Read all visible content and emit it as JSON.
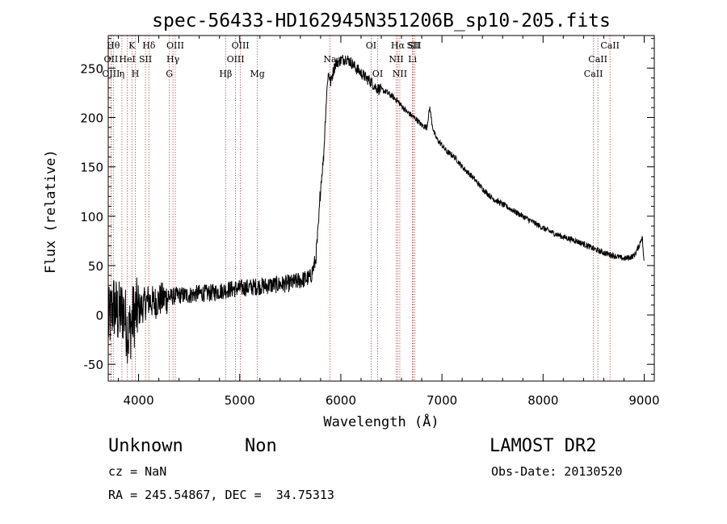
{
  "chart_data": {
    "type": "line",
    "title": "spec-56433-HD162945N351206B_sp10-205.fits",
    "xlabel": "Wavelength (Å)",
    "ylabel": "Flux (relative)",
    "xlim": [
      3700,
      9100
    ],
    "ylim": [
      -67,
      283
    ],
    "xticks": [
      4000,
      5000,
      6000,
      7000,
      8000,
      9000
    ],
    "yticks": [
      -50,
      0,
      50,
      100,
      150,
      200,
      250
    ],
    "grid": false,
    "series": [
      {
        "x": [
          3700,
          3750,
          3800,
          3850,
          3900,
          3950,
          4000,
          4050,
          4100,
          4150,
          4200,
          4300,
          4400,
          4500,
          4600,
          4700,
          4800,
          4900,
          5000,
          5100,
          5200,
          5300,
          5400,
          5500,
          5600,
          5700,
          5750,
          5780,
          5800,
          5830,
          5850,
          5870,
          5880,
          5900,
          5920,
          5950,
          6000,
          6050,
          6100,
          6150,
          6200,
          6250,
          6300,
          6350,
          6400,
          6450,
          6500,
          6550,
          6600,
          6650,
          6700,
          6750,
          6800,
          6850,
          6880,
          6900,
          6920,
          6950,
          7000,
          7050,
          7100,
          7150,
          7200,
          7250,
          7300,
          7400,
          7500,
          7600,
          7700,
          7800,
          7900,
          8000,
          8100,
          8200,
          8300,
          8400,
          8500,
          8600,
          8700,
          8800,
          8850,
          8900,
          8950,
          8980,
          9000
        ],
        "y": [
          -10,
          10,
          0,
          5,
          -20,
          0,
          5,
          10,
          15,
          12,
          15,
          18,
          20,
          20,
          22,
          22,
          24,
          26,
          27,
          28,
          29,
          30,
          31,
          32,
          35,
          38,
          55,
          90,
          130,
          160,
          205,
          240,
          245,
          235,
          245,
          255,
          258,
          260,
          256,
          250,
          245,
          240,
          236,
          230,
          228,
          226,
          222,
          218,
          212,
          206,
          202,
          198,
          192,
          190,
          210,
          195,
          185,
          178,
          172,
          165,
          162,
          157,
          150,
          145,
          140,
          128,
          118,
          112,
          106,
          100,
          94,
          88,
          83,
          79,
          76,
          72,
          67,
          63,
          60,
          57,
          58,
          60,
          70,
          80,
          50
        ]
      }
    ],
    "line_markers": [
      {
        "wavelength": 3750,
        "label": "Hθ",
        "row": 0
      },
      {
        "wavelength": 3727,
        "label": "OII",
        "row": 1
      },
      {
        "wavelength": 3727,
        "label": "OIII",
        "row": 2
      },
      {
        "wavelength": 3835,
        "label": "η",
        "row": 2
      },
      {
        "wavelength": 3889,
        "label": "HeI",
        "row": 1
      },
      {
        "wavelength": 3934,
        "label": "K",
        "row": 0
      },
      {
        "wavelength": 3968,
        "label": "H",
        "row": 2
      },
      {
        "wavelength": 4068,
        "label": "SII",
        "row": 1
      },
      {
        "wavelength": 4102,
        "label": "Hδ",
        "row": 0
      },
      {
        "wavelength": 4304,
        "label": "G",
        "row": 2
      },
      {
        "wavelength": 4340,
        "label": "Hγ",
        "row": 1
      },
      {
        "wavelength": 4363,
        "label": "OIII",
        "row": 0
      },
      {
        "wavelength": 4861,
        "label": "Hβ",
        "row": 2
      },
      {
        "wavelength": 4959,
        "label": "OIII",
        "row": 1
      },
      {
        "wavelength": 5007,
        "label": "OIII",
        "row": 0
      },
      {
        "wavelength": 5175,
        "label": "Mg",
        "row": 2
      },
      {
        "wavelength": 5893,
        "label": "Na",
        "row": 1
      },
      {
        "wavelength": 6300,
        "label": "OI",
        "row": 0
      },
      {
        "wavelength": 6364,
        "label": "OI",
        "row": 2
      },
      {
        "wavelength": 6548,
        "label": "NII",
        "row": 1
      },
      {
        "wavelength": 6563,
        "label": "Hα",
        "row": 0
      },
      {
        "wavelength": 6583,
        "label": "NII",
        "row": 2
      },
      {
        "wavelength": 6708,
        "label": "Li",
        "row": 1
      },
      {
        "wavelength": 6716,
        "label": "SII",
        "row": 0
      },
      {
        "wavelength": 6731,
        "label": "SII",
        "row": 0
      },
      {
        "wavelength": 8498,
        "label": "CaII",
        "row": 2
      },
      {
        "wavelength": 8542,
        "label": "CaII",
        "row": 1
      },
      {
        "wavelength": 8662,
        "label": "CaII",
        "row": 0
      }
    ]
  },
  "footer": {
    "class_label": "Unknown",
    "subclass_label": "Non",
    "survey": "LAMOST DR2",
    "cz": "cz = NaN",
    "obs_date": "Obs-Date: 20130520",
    "coords": "RA = 245.54867, DEC =  34.75313"
  },
  "colors": {
    "line": "#000000",
    "marker": "#b22222",
    "background": "#ffffff"
  }
}
